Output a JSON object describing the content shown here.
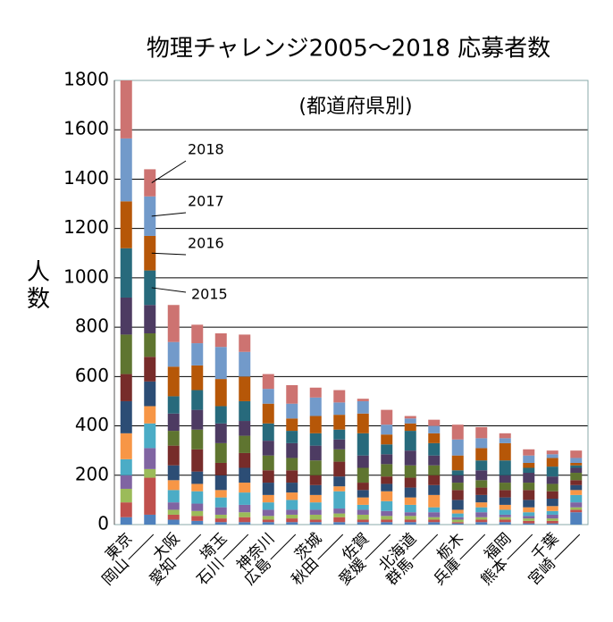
{
  "chart_data": {
    "type": "stacked-bar",
    "title": "物理チャレンジ2005～2018 応募者数",
    "subtitle": "(都道府県別)",
    "ylabel": "人数",
    "categories": [
      "東京",
      "岡山",
      "大阪",
      "愛知",
      "埼玉",
      "石川",
      "神奈川",
      "広島",
      "茨城",
      "秋田",
      "佐賀",
      "愛媛",
      "北海道",
      "群馬",
      "栃木",
      "兵庫",
      "福岡",
      "熊本",
      "千葉",
      "宮崎"
    ],
    "series": [
      {
        "color": "#4F81BD",
        "values": [
          30,
          40,
          20,
          15,
          10,
          10,
          10,
          10,
          10,
          10,
          10,
          10,
          10,
          10,
          5,
          10,
          10,
          5,
          5,
          50
        ]
      },
      {
        "color": "#C0504D",
        "values": [
          60,
          150,
          20,
          20,
          15,
          20,
          10,
          15,
          10,
          20,
          10,
          10,
          10,
          10,
          5,
          10,
          10,
          10,
          10,
          10
        ]
      },
      {
        "color": "#9BBB59",
        "values": [
          55,
          35,
          20,
          20,
          15,
          20,
          15,
          15,
          20,
          15,
          20,
          15,
          15,
          10,
          10,
          10,
          10,
          10,
          10,
          10
        ]
      },
      {
        "color": "#8064A2",
        "values": [
          55,
          85,
          30,
          30,
          30,
          30,
          25,
          20,
          20,
          20,
          20,
          20,
          15,
          20,
          10,
          20,
          10,
          10,
          15,
          20
        ]
      },
      {
        "color": "#4BACC6",
        "values": [
          65,
          100,
          50,
          50,
          40,
          50,
          30,
          40,
          30,
          70,
          20,
          40,
          30,
          20,
          15,
          20,
          20,
          15,
          15,
          30
        ]
      },
      {
        "color": "#F79646",
        "values": [
          105,
          70,
          40,
          30,
          30,
          40,
          30,
          30,
          30,
          20,
          30,
          40,
          30,
          50,
          15,
          20,
          20,
          20,
          20,
          20
        ]
      },
      {
        "color": "#2C4D75",
        "values": [
          130,
          100,
          60,
          50,
          60,
          60,
          50,
          40,
          40,
          40,
          30,
          30,
          40,
          40,
          40,
          30,
          30,
          30,
          30,
          20
        ]
      },
      {
        "color": "#772C2A",
        "values": [
          110,
          100,
          80,
          90,
          50,
          60,
          50,
          50,
          40,
          60,
          30,
          30,
          40,
          40,
          40,
          30,
          30,
          40,
          30,
          20
        ]
      },
      {
        "color": "#5F7530",
        "values": [
          160,
          95,
          60,
          80,
          80,
          70,
          60,
          50,
          60,
          50,
          60,
          50,
          50,
          40,
          30,
          30,
          30,
          30,
          30,
          30
        ]
      },
      {
        "color": "#4D3B62",
        "values": [
          150,
          115,
          70,
          80,
          80,
          60,
          60,
          60,
          60,
          40,
          50,
          40,
          60,
          40,
          30,
          40,
          30,
          40,
          30,
          20
        ]
      },
      {
        "color": "#276A7C",
        "values": [
          200,
          140,
          70,
          80,
          70,
          80,
          70,
          50,
          50,
          40,
          90,
          40,
          80,
          50,
          20,
          40,
          60,
          20,
          40,
          10
        ]
      },
      {
        "color": "#B65708",
        "values": [
          190,
          140,
          120,
          100,
          110,
          100,
          80,
          50,
          70,
          60,
          80,
          40,
          30,
          40,
          60,
          50,
          70,
          20,
          35,
          10
        ]
      },
      {
        "color": "#729ACA",
        "values": [
          255,
          160,
          100,
          90,
          130,
          100,
          60,
          60,
          75,
          50,
          50,
          40,
          20,
          30,
          65,
          40,
          20,
          30,
          15,
          20
        ]
      },
      {
        "color": "#CD7371",
        "values": [
          235,
          110,
          150,
          75,
          55,
          70,
          60,
          75,
          40,
          50,
          10,
          60,
          10,
          25,
          60,
          45,
          20,
          25,
          15,
          30
        ]
      }
    ],
    "annotations": [
      "2015",
      "2016",
      "2017",
      "2018"
    ],
    "ylim": [
      0,
      1800
    ],
    "yticks": [
      0,
      200,
      400,
      600,
      800,
      1000,
      1200,
      1400,
      1600,
      1800
    ],
    "grid": true
  }
}
